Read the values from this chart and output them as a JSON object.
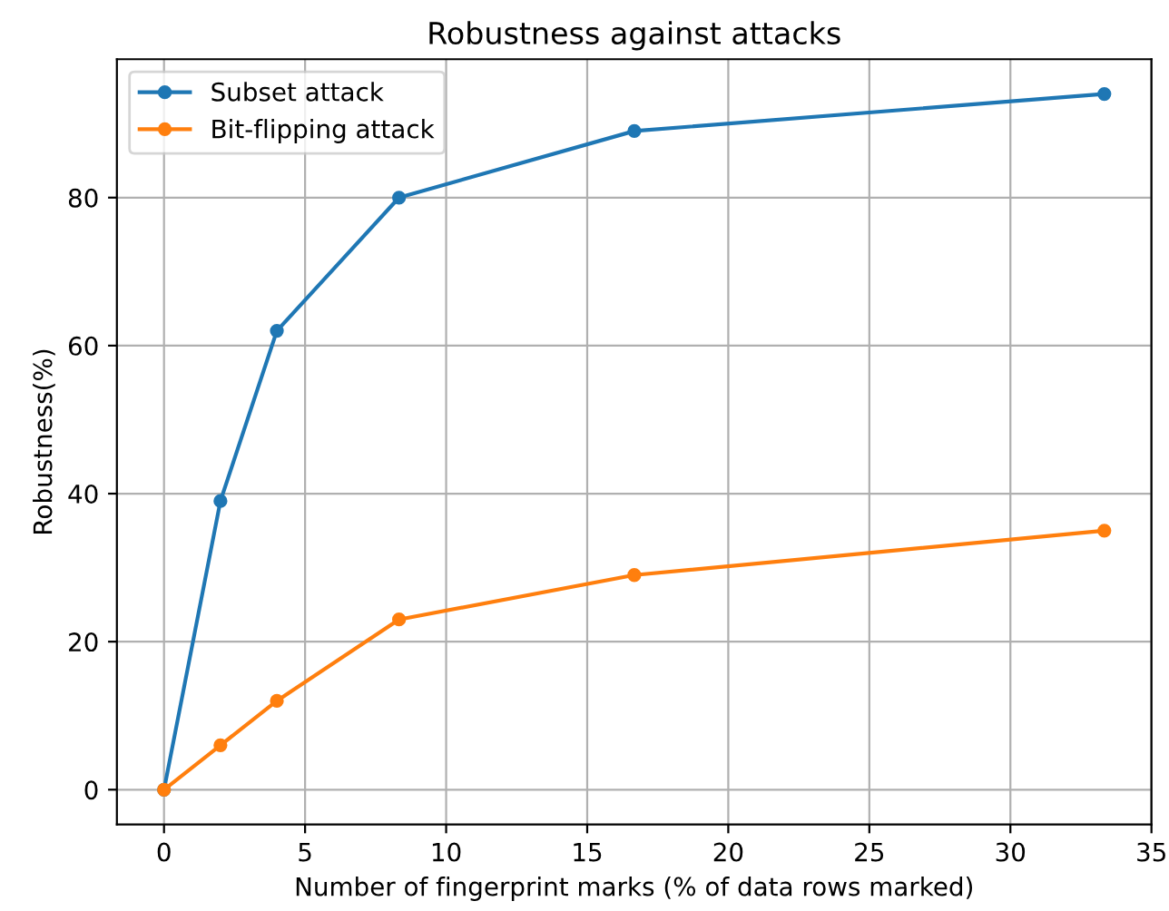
{
  "chart_data": {
    "type": "line",
    "title": "Robustness against attacks",
    "xlabel": "Number of fingerprint marks (% of data rows marked)",
    "ylabel": "Robustness(%)",
    "x": [
      0,
      2,
      4,
      8.33,
      16.67,
      33.33
    ],
    "series": [
      {
        "name": "Subset attack",
        "color": "#1f77b4",
        "values": [
          0,
          39,
          62,
          80,
          89,
          94
        ]
      },
      {
        "name": "Bit-flipping attack",
        "color": "#ff7f0e",
        "values": [
          0,
          6,
          12,
          23,
          29,
          35
        ]
      }
    ],
    "xlim": [
      -1.67,
      35
    ],
    "xticks": [
      0,
      5,
      10,
      15,
      20,
      25,
      30,
      35
    ],
    "ylim": [
      -4.7,
      98.7
    ],
    "yticks": [
      0,
      20,
      40,
      60,
      80
    ],
    "grid": true,
    "legend": "top left",
    "marker": "circle",
    "line_style": "solid"
  }
}
